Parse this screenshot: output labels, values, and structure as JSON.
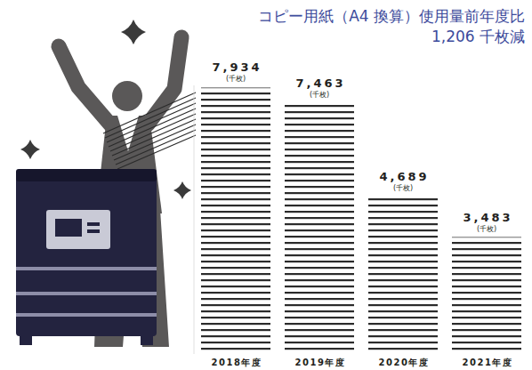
{
  "chart_data": {
    "type": "bar",
    "title": "コピー用紙（A4 換算）使用量前年度比",
    "subtitle": "1,206 千枚減",
    "ylabel": "(千枚)",
    "categories": [
      "2018年度",
      "2019年度",
      "2020年度",
      "2021年度"
    ],
    "values": [
      7934,
      7463,
      4689,
      3483
    ],
    "value_labels": [
      "7,934",
      "7,463",
      "4,689",
      "3,483"
    ],
    "color": "#2b2b2b",
    "ylim": [
      0,
      8000
    ],
    "yticks": [],
    "grid": false,
    "data_labels": true,
    "tick_labels": "x"
  }
}
